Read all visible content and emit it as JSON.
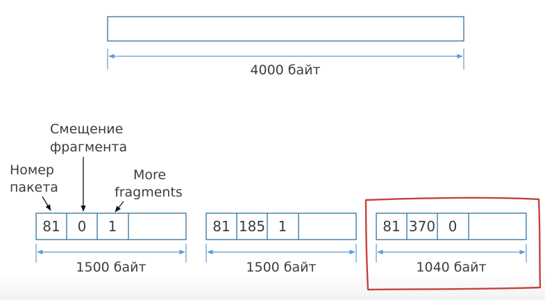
{
  "original": {
    "size_label": "4000 байт"
  },
  "labels": {
    "packet_number": [
      "Номер",
      "пакета"
    ],
    "fragment_offset": [
      "Смещение",
      "фрагмента"
    ],
    "more_fragments": [
      "More",
      "fragments"
    ]
  },
  "fragments": [
    {
      "cells": [
        "81",
        "0",
        "1"
      ],
      "size_label": "1500 байт"
    },
    {
      "cells": [
        "81",
        "185",
        "1"
      ],
      "size_label": "1500 байт"
    },
    {
      "cells": [
        "81",
        "370",
        "0"
      ],
      "size_label": "1040 байт",
      "highlighted": true
    }
  ],
  "colors": {
    "box_stroke": "#2f6f9e",
    "dimension_line": "#5b9bd5",
    "highlight": "#c9403a",
    "text": "#3c3c3c"
  }
}
